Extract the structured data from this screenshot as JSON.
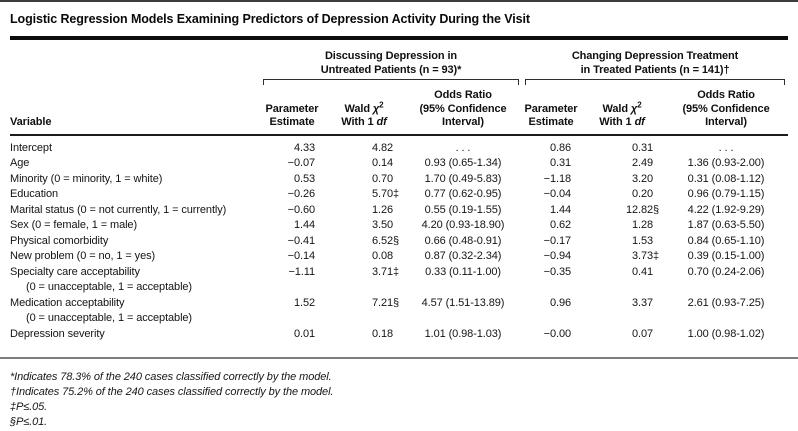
{
  "title": "Logistic Regression Models Examining Predictors of Depression Activity During the Visit",
  "table": {
    "variable_header": "Variable",
    "groups": [
      {
        "line1": "Discussing Depression in",
        "line2": "Untreated Patients (n = 93)*"
      },
      {
        "line1": "Changing Depression Treatment",
        "line2": "in Treated Patients (n = 141)†"
      }
    ],
    "subheaders": {
      "parameter_line1": "Parameter",
      "parameter_line2": "Estimate",
      "wald_word": "Wald",
      "chi": "χ",
      "chi_sup": "2",
      "with_word": "With 1",
      "df_word": "df",
      "odds_line1": "Odds Ratio",
      "odds_line2": "(95% Confidence",
      "odds_line3": "Interval)"
    },
    "rows": [
      {
        "label": "Intercept",
        "sublabel": "",
        "g1": {
          "pe": "4.33",
          "wald": "4.82",
          "wald_sym": "",
          "or": ". . ."
        },
        "g2": {
          "pe": "0.86",
          "wald": "0.31",
          "wald_sym": "",
          "or": ". . ."
        }
      },
      {
        "label": "Age",
        "sublabel": "",
        "g1": {
          "pe": "−0.07",
          "wald": "0.14",
          "wald_sym": "",
          "or": "0.93 (0.65-1.34)"
        },
        "g2": {
          "pe": "0.31",
          "wald": "2.49",
          "wald_sym": "",
          "or": "1.36 (0.93-2.00)"
        }
      },
      {
        "label": "Minority (0 = minority, 1 = white)",
        "sublabel": "",
        "g1": {
          "pe": "0.53",
          "wald": "0.70",
          "wald_sym": "",
          "or": "1.70 (0.49-5.83)"
        },
        "g2": {
          "pe": "−1.18",
          "wald": "3.20",
          "wald_sym": "",
          "or": "0.31 (0.08-1.12)"
        }
      },
      {
        "label": "Education",
        "sublabel": "",
        "g1": {
          "pe": "−0.26",
          "wald": "5.70",
          "wald_sym": "‡",
          "or": "0.77 (0.62-0.95)"
        },
        "g2": {
          "pe": "−0.04",
          "wald": "0.20",
          "wald_sym": "",
          "or": "0.96 (0.79-1.15)"
        }
      },
      {
        "label": "Marital status (0 = not currently, 1 = currently)",
        "sublabel": "",
        "g1": {
          "pe": "−0.60",
          "wald": "1.26",
          "wald_sym": "",
          "or": "0.55 (0.19-1.55)"
        },
        "g2": {
          "pe": "1.44",
          "wald": "12.82",
          "wald_sym": "§",
          "or": "4.22 (1.92-9.29)"
        }
      },
      {
        "label": "Sex (0 = female, 1 = male)",
        "sublabel": "",
        "g1": {
          "pe": "1.44",
          "wald": "3.50",
          "wald_sym": "",
          "or": "4.20 (0.93-18.90)"
        },
        "g2": {
          "pe": "0.62",
          "wald": "1.28",
          "wald_sym": "",
          "or": "1.87 (0.63-5.50)"
        }
      },
      {
        "label": "Physical comorbidity",
        "sublabel": "",
        "g1": {
          "pe": "−0.41",
          "wald": "6.52",
          "wald_sym": "§",
          "or": "0.66 (0.48-0.91)"
        },
        "g2": {
          "pe": "−0.17",
          "wald": "1.53",
          "wald_sym": "",
          "or": "0.84 (0.65-1.10)"
        }
      },
      {
        "label": "New problem (0 = no, 1 = yes)",
        "sublabel": "",
        "g1": {
          "pe": "−0.14",
          "wald": "0.08",
          "wald_sym": "",
          "or": "0.87 (0.32-2.34)"
        },
        "g2": {
          "pe": "−0.94",
          "wald": "3.73",
          "wald_sym": "‡",
          "or": "0.39 (0.15-1.00)"
        }
      },
      {
        "label": "Specialty care acceptability",
        "sublabel": "(0 = unacceptable, 1 = acceptable)",
        "g1": {
          "pe": "−1.11",
          "wald": "3.71",
          "wald_sym": "‡",
          "or": "0.33 (0.11-1.00)"
        },
        "g2": {
          "pe": "−0.35",
          "wald": "0.41",
          "wald_sym": "",
          "or": "0.70 (0.24-2.06)"
        }
      },
      {
        "label": "Medication acceptability",
        "sublabel": "(0 = unacceptable, 1 = acceptable)",
        "g1": {
          "pe": "1.52",
          "wald": "7.21",
          "wald_sym": "§",
          "or": "4.57 (1.51-13.89)"
        },
        "g2": {
          "pe": "0.96",
          "wald": "3.37",
          "wald_sym": "",
          "or": "2.61 (0.93-7.25)"
        }
      },
      {
        "label": "Depression severity",
        "sublabel": "",
        "g1": {
          "pe": "0.01",
          "wald": "0.18",
          "wald_sym": "",
          "or": "1.01 (0.98-1.03)"
        },
        "g2": {
          "pe": "−0.00",
          "wald": "0.07",
          "wald_sym": "",
          "or": "1.00 (0.98-1.02)"
        }
      }
    ]
  },
  "footnotes": [
    "*Indicates 78.3% of the 240 cases classified correctly by the model.",
    "†Indicates 75.2% of the 240 cases classified correctly by the model.",
    "‡P≤.05.",
    "§P≤.01."
  ]
}
